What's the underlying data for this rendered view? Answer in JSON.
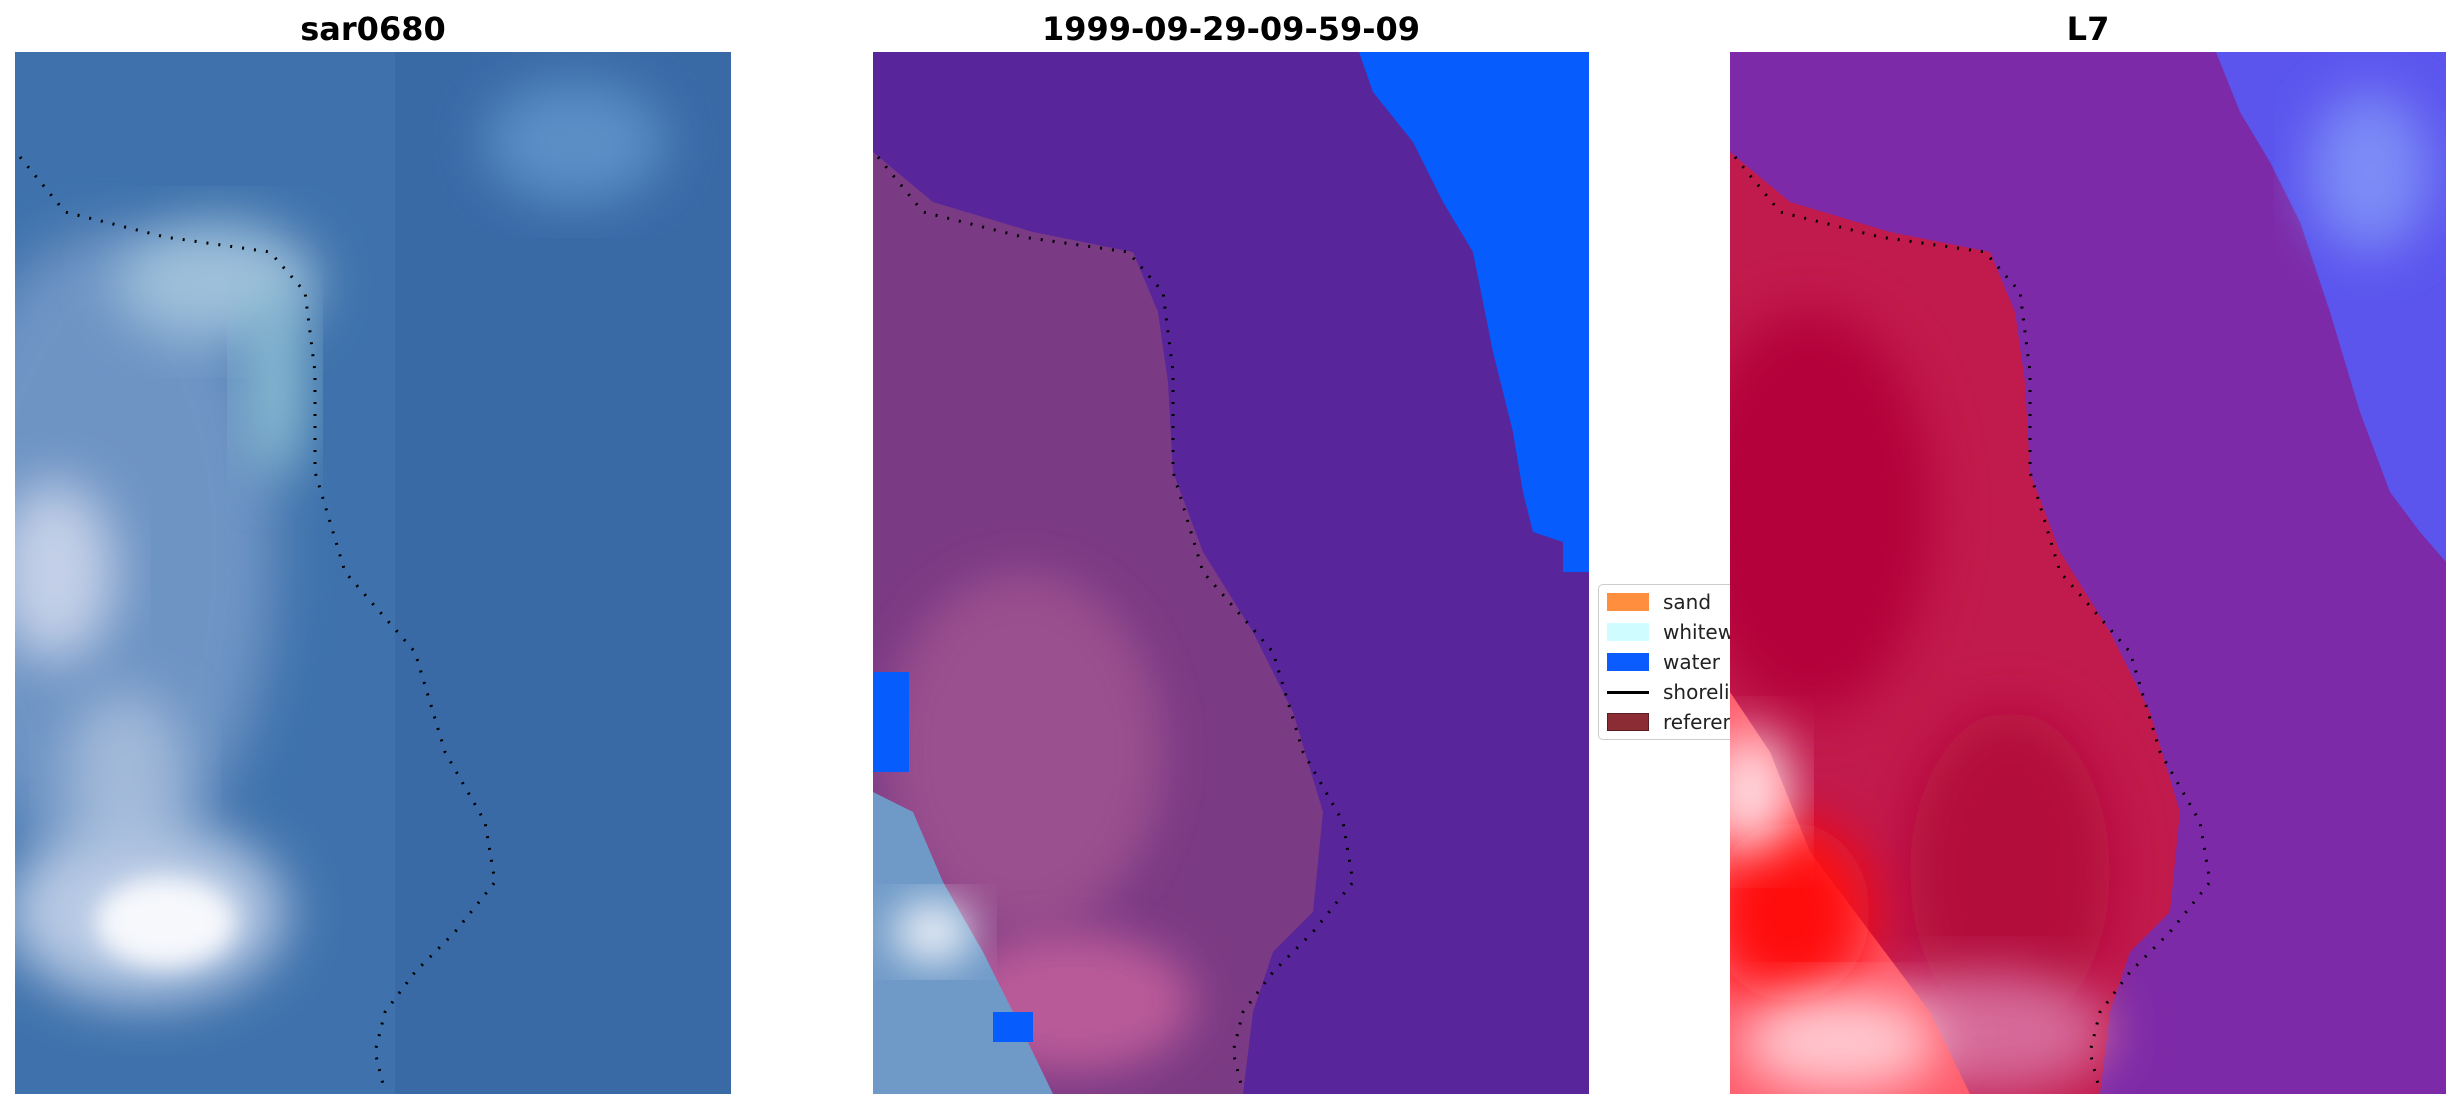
{
  "panels": [
    {
      "title": "sar0680"
    },
    {
      "title": "1999-09-29-09-59-09"
    },
    {
      "title": "L7"
    }
  ],
  "legend": {
    "items": [
      {
        "label": "sand",
        "color": "#ff8f3f",
        "kind": "patch"
      },
      {
        "label": "whitewater",
        "color": "#cffcff",
        "kind": "patch"
      },
      {
        "label": "water",
        "color": "#0a5cff",
        "kind": "patch"
      },
      {
        "label": "shoreline",
        "color": "#000000",
        "kind": "line"
      },
      {
        "label": "reference",
        "color": "#8b2b33",
        "kind": "patch"
      }
    ]
  },
  "colors": {
    "rgb_water": "#3f74ad",
    "rgb_white": "#f2f4f8",
    "class_water": "#0a5cff",
    "overlay_purple": "#5a2496",
    "false_color_purple": "#7a2aa6",
    "false_color_red": "#c81a4a",
    "false_color_blue": "#5a5cf2"
  }
}
